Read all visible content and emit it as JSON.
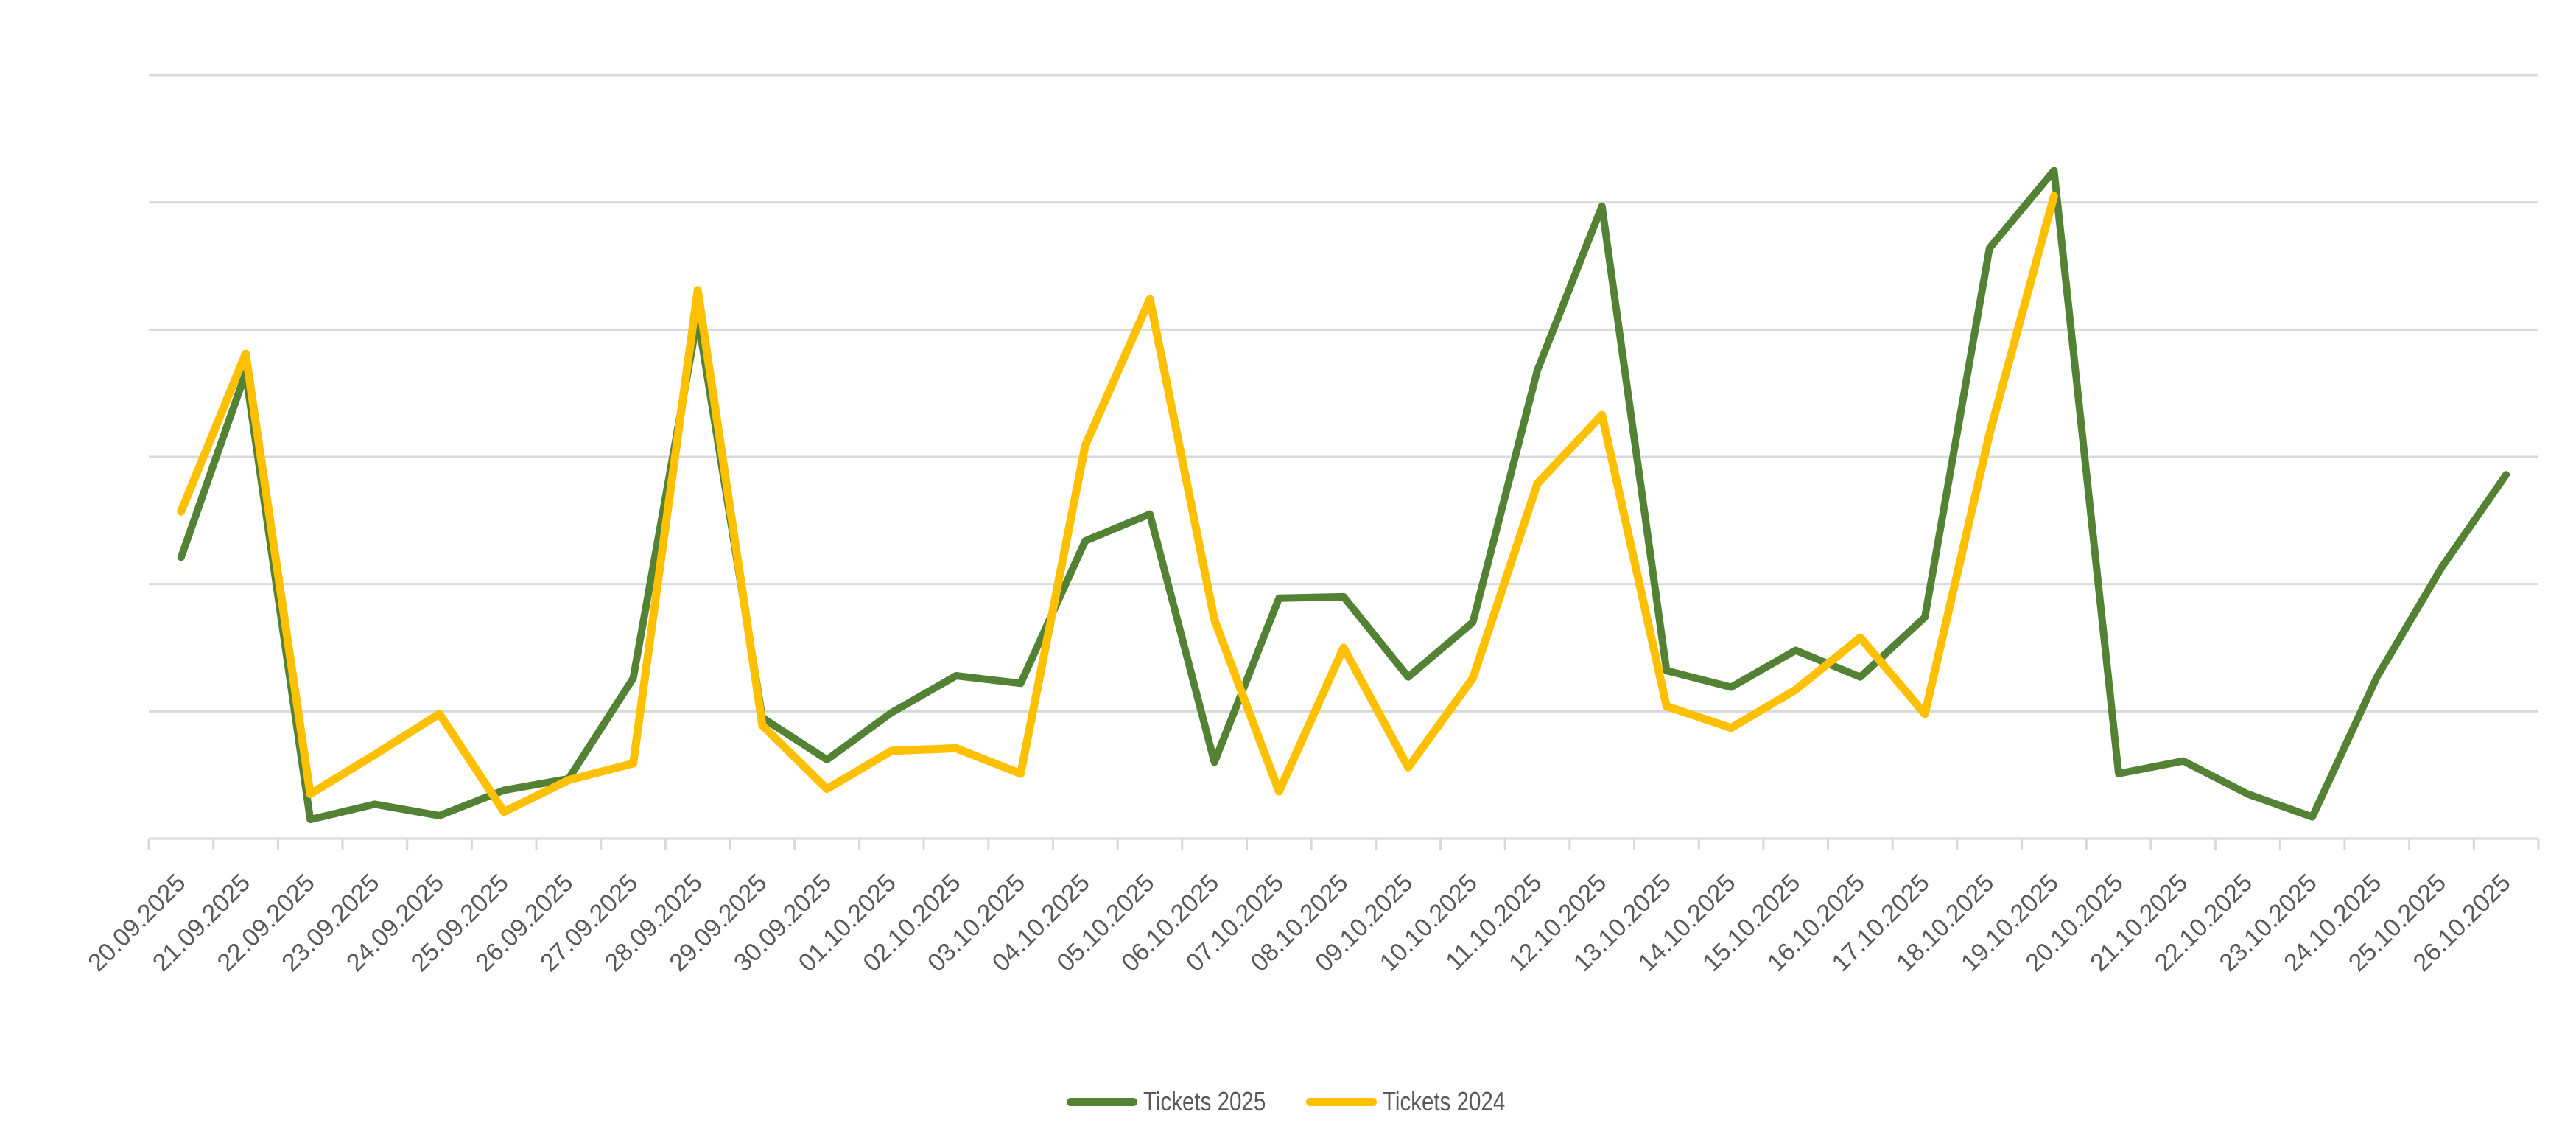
{
  "chart_data": {
    "type": "line",
    "title": "",
    "xlabel": "",
    "ylabel": "",
    "y_axis_labels_visible": false,
    "y_units_note": "Values expressed in gridline units (no y-axis labels shown); 6 gridline intervals",
    "ylim": [
      0,
      6
    ],
    "grid": true,
    "legend_position": "bottom",
    "categories": [
      "20.09.2025",
      "21.09.2025",
      "22.09.2025",
      "23.09.2025",
      "24.09.2025",
      "25.09.2025",
      "26.09.2025",
      "27.09.2025",
      "28.09.2025",
      "29.09.2025",
      "30.09.2025",
      "01.10.2025",
      "02.10.2025",
      "03.10.2025",
      "04.10.2025",
      "05.10.2025",
      "06.10.2025",
      "07.10.2025",
      "08.10.2025",
      "09.10.2025",
      "10.10.2025",
      "11.10.2025",
      "12.10.2025",
      "13.10.2025",
      "14.10.2025",
      "15.10.2025",
      "16.10.2025",
      "17.10.2025",
      "18.10.2025",
      "19.10.2025",
      "20.10.2025",
      "21.10.2025",
      "22.10.2025",
      "23.10.2025",
      "24.10.2025",
      "25.10.2025",
      "26.10.2025"
    ],
    "series": [
      {
        "name": "Tickets 2025",
        "color": "#548235",
        "values": [
          2.21,
          3.66,
          0.15,
          0.27,
          0.18,
          0.38,
          0.47,
          1.26,
          4.1,
          0.95,
          0.62,
          0.99,
          1.28,
          1.22,
          2.34,
          2.55,
          0.6,
          1.89,
          1.9,
          1.27,
          1.7,
          3.68,
          4.97,
          1.32,
          1.19,
          1.48,
          1.27,
          1.74,
          4.64,
          5.25,
          0.51,
          0.61,
          0.35,
          0.17,
          1.27,
          2.13,
          2.86
        ]
      },
      {
        "name": "Tickets 2024",
        "color": "#FFC000",
        "values": [
          2.57,
          3.81,
          0.35,
          0.66,
          0.98,
          0.21,
          0.46,
          0.59,
          4.31,
          0.89,
          0.39,
          0.69,
          0.71,
          0.51,
          3.09,
          4.24,
          1.72,
          0.37,
          1.5,
          0.56,
          1.26,
          2.79,
          3.33,
          1.04,
          0.87,
          1.17,
          1.58,
          0.98,
          3.18,
          5.05,
          null,
          null,
          null,
          null,
          null,
          null,
          null
        ]
      }
    ]
  },
  "legend": {
    "items": [
      {
        "label": "Tickets 2025",
        "color": "#548235"
      },
      {
        "label": "Tickets 2024",
        "color": "#FFC000"
      }
    ]
  },
  "style": {
    "gridline_color": "#d9d9d9",
    "axis_label_color": "#595959"
  }
}
